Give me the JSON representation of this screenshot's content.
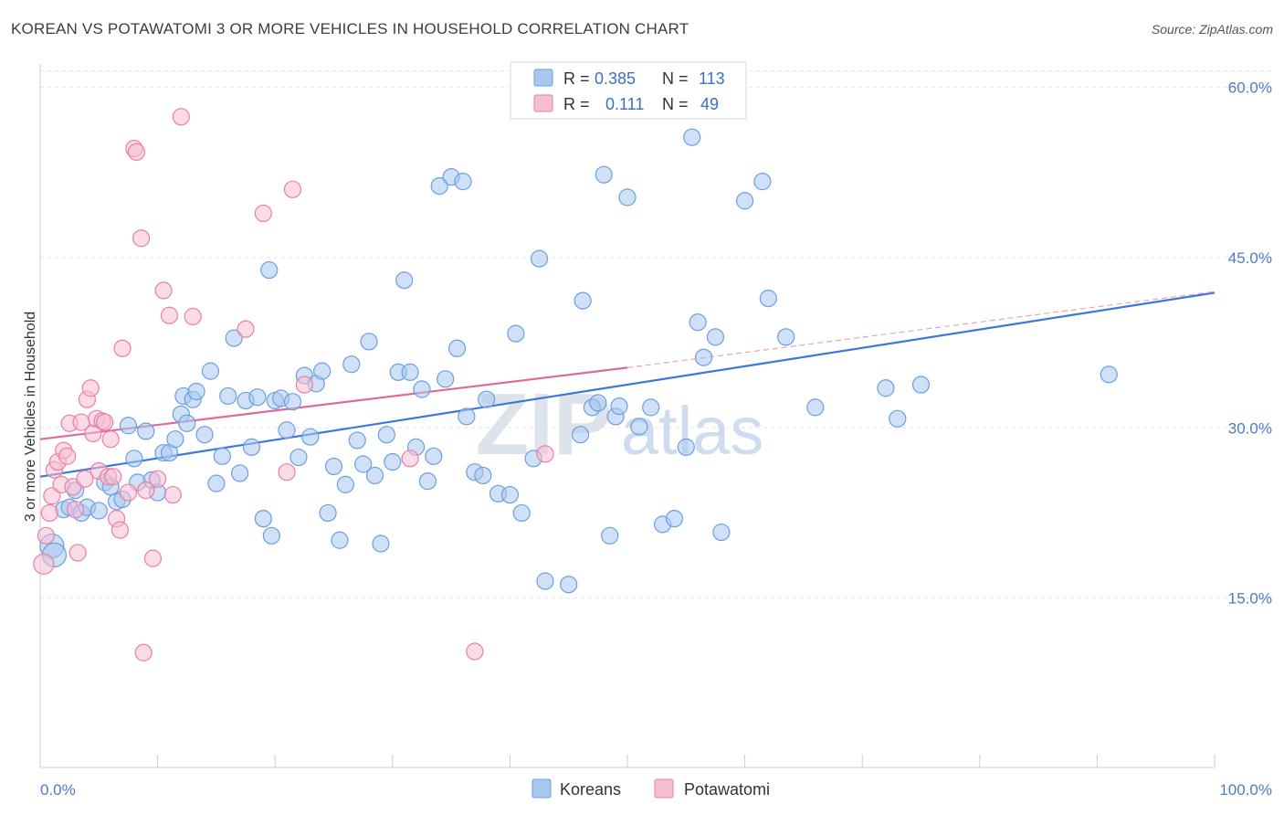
{
  "chart_data": {
    "type": "scatter",
    "title": "KOREAN VS POTAWATOMI 3 OR MORE VEHICLES IN HOUSEHOLD CORRELATION CHART",
    "source": "Source: ZipAtlas.com",
    "xlabel": "",
    "ylabel": "3 or more Vehicles in Household",
    "xlim": [
      0,
      100
    ],
    "ylim": [
      0,
      60
    ],
    "x_tick_labels": {
      "left": "0.0%",
      "right": "100.0%"
    },
    "y_ticks": [
      15,
      30,
      45,
      60
    ],
    "y_tick_labels": [
      "15.0%",
      "30.0%",
      "45.0%",
      "60.0%"
    ],
    "grid": true,
    "watermark": "ZIPatlas",
    "legend_top": [
      {
        "r_label": "R =",
        "r_value": "0.385",
        "n_label": "N =",
        "n_value": "113"
      },
      {
        "r_label": "R =",
        "r_value": "0.111",
        "n_label": "N =",
        "n_value": "49"
      }
    ],
    "series": [
      {
        "name": "Koreans",
        "color": "#6a9fe0",
        "fill": "#a9c8f0",
        "trend": {
          "x0": 0,
          "y0": 25.7,
          "x1": 100,
          "y1": 41.9
        },
        "points": [
          [
            1.0,
            19.6
          ],
          [
            1.2,
            18.8
          ],
          [
            2.0,
            22.8
          ],
          [
            2.5,
            23.0
          ],
          [
            3.0,
            24.5
          ],
          [
            3.5,
            22.5
          ],
          [
            4.0,
            23.0
          ],
          [
            5.0,
            22.7
          ],
          [
            5.5,
            25.2
          ],
          [
            6.0,
            24.8
          ],
          [
            6.5,
            23.5
          ],
          [
            7.0,
            23.7
          ],
          [
            7.5,
            30.2
          ],
          [
            8.0,
            27.3
          ],
          [
            8.3,
            25.2
          ],
          [
            9.0,
            29.7
          ],
          [
            9.5,
            25.4
          ],
          [
            10.0,
            24.3
          ],
          [
            10.5,
            27.8
          ],
          [
            11.0,
            27.8
          ],
          [
            11.5,
            29.0
          ],
          [
            12.0,
            31.2
          ],
          [
            12.2,
            32.8
          ],
          [
            12.5,
            30.4
          ],
          [
            13.0,
            32.5
          ],
          [
            13.3,
            33.2
          ],
          [
            14.0,
            29.4
          ],
          [
            14.5,
            35.0
          ],
          [
            15.0,
            25.1
          ],
          [
            15.5,
            27.5
          ],
          [
            16.0,
            32.8
          ],
          [
            16.5,
            37.9
          ],
          [
            17.0,
            26.0
          ],
          [
            17.5,
            32.4
          ],
          [
            18.0,
            28.3
          ],
          [
            18.5,
            32.7
          ],
          [
            19.0,
            22.0
          ],
          [
            19.5,
            43.9
          ],
          [
            19.7,
            20.5
          ],
          [
            20.0,
            32.4
          ],
          [
            20.5,
            32.6
          ],
          [
            21.0,
            29.8
          ],
          [
            21.5,
            32.3
          ],
          [
            22.0,
            27.4
          ],
          [
            22.5,
            34.6
          ],
          [
            23.0,
            29.2
          ],
          [
            23.5,
            33.9
          ],
          [
            24.0,
            35.0
          ],
          [
            24.5,
            22.5
          ],
          [
            25.0,
            26.6
          ],
          [
            25.5,
            20.1
          ],
          [
            26.0,
            25.0
          ],
          [
            26.5,
            35.6
          ],
          [
            27.0,
            28.9
          ],
          [
            27.5,
            26.8
          ],
          [
            28.0,
            37.6
          ],
          [
            28.5,
            25.8
          ],
          [
            29.0,
            19.8
          ],
          [
            29.5,
            29.4
          ],
          [
            30.0,
            27.0
          ],
          [
            30.5,
            34.9
          ],
          [
            31.0,
            43.0
          ],
          [
            31.5,
            34.9
          ],
          [
            32.0,
            28.3
          ],
          [
            32.5,
            33.4
          ],
          [
            33.0,
            25.3
          ],
          [
            33.5,
            27.5
          ],
          [
            34.0,
            51.3
          ],
          [
            34.5,
            34.3
          ],
          [
            35.0,
            52.1
          ],
          [
            35.5,
            37.0
          ],
          [
            36.0,
            51.7
          ],
          [
            36.3,
            31.0
          ],
          [
            37.0,
            26.1
          ],
          [
            37.7,
            25.8
          ],
          [
            38.0,
            32.5
          ],
          [
            39.0,
            24.2
          ],
          [
            40.0,
            24.1
          ],
          [
            40.5,
            38.3
          ],
          [
            41.0,
            22.5
          ],
          [
            42.0,
            27.3
          ],
          [
            42.5,
            44.9
          ],
          [
            43.0,
            16.5
          ],
          [
            45.0,
            16.2
          ],
          [
            46.0,
            29.4
          ],
          [
            46.2,
            41.2
          ],
          [
            47.0,
            31.8
          ],
          [
            47.5,
            32.2
          ],
          [
            48.0,
            52.3
          ],
          [
            48.5,
            20.5
          ],
          [
            49.0,
            31.0
          ],
          [
            49.3,
            31.9
          ],
          [
            50.0,
            50.3
          ],
          [
            51.0,
            30.1
          ],
          [
            52.0,
            31.8
          ],
          [
            53.0,
            21.5
          ],
          [
            54.0,
            22.0
          ],
          [
            55.0,
            28.3
          ],
          [
            55.5,
            55.6
          ],
          [
            56.0,
            39.3
          ],
          [
            56.5,
            36.2
          ],
          [
            57.5,
            38.0
          ],
          [
            58.0,
            20.8
          ],
          [
            60.0,
            50.0
          ],
          [
            61.5,
            51.7
          ],
          [
            62.0,
            41.4
          ],
          [
            63.5,
            38.0
          ],
          [
            66.0,
            31.8
          ],
          [
            72.0,
            33.5
          ],
          [
            73.0,
            30.8
          ],
          [
            75.0,
            33.8
          ],
          [
            91.0,
            34.7
          ]
        ]
      },
      {
        "name": "Potawatomi",
        "color": "#e97fa5",
        "fill": "#f6bed2",
        "trend": {
          "x0": 0,
          "y0": 29.0,
          "x1": 50,
          "y1": 35.3
        },
        "trend_dash": {
          "x0": 50,
          "y0": 35.3,
          "x1": 100,
          "y1": 42.0
        },
        "points": [
          [
            0.3,
            18.0
          ],
          [
            0.5,
            20.5
          ],
          [
            0.8,
            22.5
          ],
          [
            1.0,
            24.0
          ],
          [
            1.2,
            26.3
          ],
          [
            1.5,
            27.0
          ],
          [
            1.8,
            25.0
          ],
          [
            2.0,
            28.0
          ],
          [
            2.3,
            27.5
          ],
          [
            2.5,
            30.4
          ],
          [
            2.8,
            24.8
          ],
          [
            3.0,
            22.8
          ],
          [
            3.2,
            19.0
          ],
          [
            3.5,
            30.5
          ],
          [
            3.8,
            25.5
          ],
          [
            4.0,
            32.5
          ],
          [
            4.3,
            33.5
          ],
          [
            4.5,
            29.5
          ],
          [
            4.8,
            30.8
          ],
          [
            5.0,
            26.2
          ],
          [
            5.3,
            30.6
          ],
          [
            5.5,
            30.5
          ],
          [
            5.8,
            25.7
          ],
          [
            6.0,
            29.0
          ],
          [
            6.2,
            25.7
          ],
          [
            6.5,
            22.0
          ],
          [
            6.8,
            21.0
          ],
          [
            7.0,
            37.0
          ],
          [
            7.5,
            24.3
          ],
          [
            8.0,
            54.6
          ],
          [
            8.2,
            54.3
          ],
          [
            8.6,
            46.7
          ],
          [
            8.8,
            10.2
          ],
          [
            9.0,
            24.5
          ],
          [
            9.6,
            18.5
          ],
          [
            10.0,
            25.5
          ],
          [
            10.5,
            42.1
          ],
          [
            11.0,
            39.9
          ],
          [
            11.3,
            24.1
          ],
          [
            12.0,
            57.4
          ],
          [
            13.0,
            39.8
          ],
          [
            17.5,
            38.7
          ],
          [
            19.0,
            48.9
          ],
          [
            21.0,
            26.1
          ],
          [
            21.5,
            51.0
          ],
          [
            22.5,
            33.8
          ],
          [
            31.5,
            27.3
          ],
          [
            37.0,
            10.3
          ],
          [
            43.0,
            27.7
          ]
        ]
      }
    ]
  }
}
